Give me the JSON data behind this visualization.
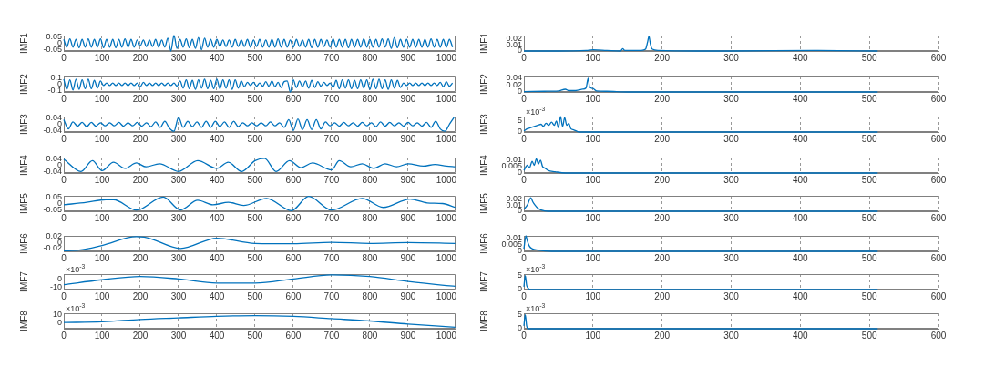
{
  "chart_data": [
    {
      "type": "line",
      "ylabel": "IMF1",
      "color": "#0072bd",
      "xlim": [
        0,
        1024
      ],
      "xticks": [
        0,
        100,
        200,
        300,
        400,
        500,
        600,
        700,
        800,
        900,
        1000
      ],
      "ylim": [
        -0.06,
        0.06
      ],
      "yticks": [
        -0.05,
        0,
        0.05
      ],
      "grid": "x",
      "x": [
        0,
        8,
        16,
        24,
        32,
        40,
        48,
        56,
        64,
        72,
        80,
        88,
        96,
        104,
        112,
        120,
        128,
        136,
        144,
        152,
        160,
        168,
        176,
        184,
        192,
        200,
        208,
        216,
        224,
        232,
        240,
        248,
        256,
        264,
        272,
        280,
        288,
        296,
        304,
        312,
        320,
        328,
        336,
        344,
        352,
        360,
        368,
        376,
        384,
        392,
        400,
        408,
        416,
        424,
        432,
        440,
        448,
        456,
        464,
        472,
        480,
        488,
        496,
        504,
        512,
        520,
        528,
        536,
        544,
        552,
        560,
        568,
        576,
        584,
        592,
        600,
        608,
        616,
        624,
        632,
        640,
        648,
        656,
        664,
        672,
        680,
        688,
        696,
        704,
        712,
        720,
        728,
        736,
        744,
        752,
        760,
        768,
        776,
        784,
        792,
        800,
        808,
        816,
        824,
        832,
        840,
        848,
        856,
        864,
        872,
        880,
        888,
        896,
        904,
        912,
        920,
        928,
        936,
        944,
        952,
        960,
        968,
        976,
        984,
        992,
        1000,
        1008,
        1016
      ],
      "values": [
        0.03,
        -0.03,
        0.035,
        -0.03,
        0.03,
        -0.035,
        0.03,
        -0.03,
        0.035,
        -0.03,
        0.03,
        -0.03,
        0.035,
        -0.035,
        0.03,
        -0.03,
        0.03,
        -0.035,
        0.03,
        -0.03,
        0.035,
        -0.03,
        0.03,
        -0.03,
        0.025,
        -0.02,
        0.025,
        -0.025,
        0.025,
        -0.025,
        0.03,
        -0.03,
        0.025,
        -0.03,
        0.04,
        -0.06,
        0.06,
        -0.04,
        0.03,
        -0.03,
        0.035,
        -0.035,
        0.03,
        -0.04,
        0.045,
        -0.05,
        0.04,
        -0.03,
        0.03,
        -0.03,
        0.03,
        -0.025,
        0.025,
        -0.025,
        0.025,
        -0.03,
        0.03,
        -0.025,
        0.025,
        -0.025,
        0.03,
        -0.03,
        0.025,
        -0.025,
        0.03,
        -0.03,
        0.025,
        -0.03,
        0.03,
        -0.03,
        0.035,
        -0.03,
        0.03,
        -0.03,
        0.025,
        -0.03,
        0.03,
        -0.025,
        0.025,
        -0.03,
        0.03,
        -0.035,
        0.03,
        -0.03,
        0.03,
        -0.025,
        0.025,
        -0.03,
        0.035,
        -0.03,
        0.03,
        -0.03,
        0.03,
        -0.035,
        0.03,
        -0.03,
        0.03,
        -0.03,
        0.035,
        -0.03,
        0.03,
        -0.03,
        0.03,
        -0.03,
        0.035,
        -0.03,
        0.035,
        -0.04,
        0.045,
        -0.035,
        0.03,
        -0.03,
        0.03,
        -0.03,
        0.03,
        -0.03,
        0.03,
        -0.03,
        0.03,
        -0.03,
        0.035,
        -0.03,
        0.03,
        -0.03,
        0.03,
        -0.03,
        0.03,
        -0.03
      ]
    },
    {
      "type": "line",
      "ylabel": "IMF1",
      "color": "#0072bd",
      "xlim": [
        0,
        600
      ],
      "xticks": [
        0,
        100,
        200,
        300,
        400,
        500,
        600
      ],
      "ylim": [
        0,
        0.026
      ],
      "yticks": [
        0,
        0.01,
        0.02
      ],
      "grid": "x",
      "x": [
        0,
        50,
        90,
        100,
        120,
        140,
        143,
        146,
        170,
        176,
        179,
        181,
        183,
        186,
        195,
        250,
        300,
        420,
        512
      ],
      "values": [
        0,
        0,
        0.001,
        0.002,
        0.001,
        0,
        0.004,
        0.001,
        0.001,
        0.003,
        0.015,
        0.025,
        0.012,
        0.003,
        0.001,
        0,
        0,
        0.001,
        0
      ]
    },
    {
      "type": "line",
      "ylabel": "IMF2",
      "color": "#0072bd",
      "xlim": [
        0,
        1024
      ],
      "xticks": [
        0,
        100,
        200,
        300,
        400,
        500,
        600,
        700,
        800,
        900,
        1000
      ],
      "ylim": [
        -0.12,
        0.12
      ],
      "yticks": [
        -0.1,
        0,
        0.1
      ],
      "grid": "x",
      "x": [
        0,
        8,
        16,
        24,
        32,
        40,
        48,
        56,
        64,
        72,
        80,
        88,
        96,
        104,
        112,
        120,
        128,
        136,
        144,
        152,
        160,
        168,
        176,
        184,
        192,
        200,
        208,
        216,
        224,
        232,
        240,
        248,
        256,
        264,
        272,
        280,
        288,
        296,
        304,
        312,
        320,
        328,
        336,
        344,
        352,
        360,
        368,
        376,
        384,
        392,
        400,
        408,
        416,
        424,
        432,
        440,
        448,
        456,
        464,
        472,
        480,
        488,
        496,
        504,
        512,
        520,
        528,
        536,
        544,
        552,
        560,
        568,
        576,
        584,
        592,
        600,
        608,
        616,
        624,
        632,
        640,
        648,
        656,
        664,
        672,
        680,
        688,
        696,
        704,
        712,
        720,
        728,
        736,
        744,
        752,
        760,
        768,
        776,
        784,
        792,
        800,
        808,
        816,
        824,
        832,
        840,
        848,
        856,
        864,
        872,
        880,
        888,
        896,
        904,
        912,
        920,
        928,
        936,
        944,
        952,
        960,
        968,
        976,
        984,
        992,
        1000,
        1008,
        1016
      ],
      "values": [
        0.08,
        -0.08,
        0.07,
        -0.09,
        0.08,
        -0.08,
        0.07,
        -0.07,
        0.08,
        -0.07,
        0.06,
        -0.06,
        0.05,
        -0.02,
        0.02,
        -0.02,
        0.02,
        -0.02,
        0.02,
        -0.02,
        0.02,
        -0.02,
        0.02,
        -0.02,
        0.02,
        -0.04,
        0.03,
        -0.02,
        0.02,
        -0.02,
        0.02,
        -0.02,
        0.02,
        -0.02,
        0.02,
        -0.02,
        0.02,
        -0.03,
        0.05,
        -0.06,
        0.07,
        -0.07,
        0.06,
        -0.08,
        0.07,
        -0.06,
        0.08,
        -0.07,
        0.06,
        -0.07,
        0.08,
        -0.07,
        0.07,
        -0.06,
        0.07,
        -0.08,
        0.07,
        -0.06,
        0.05,
        -0.04,
        0.03,
        -0.02,
        0.03,
        -0.03,
        0.02,
        -0.03,
        0.04,
        -0.03,
        0.05,
        -0.04,
        0.03,
        -0.05,
        0.04,
        0.05,
        -0.12,
        0.07,
        -0.05,
        0.05,
        -0.04,
        0.05,
        -0.06,
        0.06,
        -0.05,
        0.04,
        -0.03,
        0.03,
        -0.02,
        0.02,
        -0.05,
        0.06,
        -0.07,
        0.07,
        -0.06,
        0.07,
        -0.07,
        0.06,
        -0.07,
        0.07,
        -0.06,
        0.07,
        -0.08,
        0.08,
        -0.07,
        0.08,
        -0.07,
        0.07,
        -0.08,
        0.07,
        -0.06,
        0.06,
        -0.05,
        0.02,
        -0.02,
        0.02,
        -0.02,
        0.02,
        -0.02,
        0.02,
        -0.02,
        0.02,
        -0.02,
        0.02,
        -0.02,
        0.03,
        -0.04,
        0.04,
        -0.03,
        0.02
      ]
    },
    {
      "type": "line",
      "ylabel": "IMF2",
      "color": "#0072bd",
      "xlim": [
        0,
        600
      ],
      "xticks": [
        0,
        100,
        200,
        300,
        400,
        500,
        600
      ],
      "ylim": [
        0,
        0.045
      ],
      "yticks": [
        0,
        0.02,
        0.04
      ],
      "grid": "x",
      "x": [
        0,
        30,
        50,
        60,
        65,
        75,
        85,
        90,
        93,
        95,
        100,
        105,
        120,
        150,
        512
      ],
      "values": [
        0.001,
        0.002,
        0.003,
        0.008,
        0.004,
        0.004,
        0.008,
        0.012,
        0.04,
        0.015,
        0.01,
        0.003,
        0.002,
        0,
        0
      ]
    },
    {
      "type": "line",
      "ylabel": "IMF3",
      "color": "#0072bd",
      "xlim": [
        0,
        1024
      ],
      "xticks": [
        0,
        100,
        200,
        300,
        400,
        500,
        600,
        700,
        800,
        900,
        1000
      ],
      "ylim": [
        -0.05,
        0.05
      ],
      "yticks": [
        -0.04,
        0,
        0.04
      ],
      "grid": "x",
      "x": [
        0,
        12,
        24,
        36,
        48,
        60,
        72,
        84,
        96,
        108,
        120,
        132,
        144,
        156,
        168,
        180,
        192,
        204,
        216,
        228,
        240,
        252,
        264,
        276,
        288,
        300,
        312,
        324,
        336,
        348,
        360,
        372,
        384,
        396,
        408,
        420,
        432,
        444,
        456,
        468,
        480,
        492,
        504,
        516,
        528,
        540,
        552,
        564,
        576,
        588,
        600,
        612,
        624,
        636,
        648,
        660,
        672,
        684,
        696,
        708,
        720,
        732,
        744,
        756,
        768,
        780,
        792,
        804,
        816,
        828,
        840,
        852,
        864,
        876,
        888,
        900,
        912,
        924,
        936,
        948,
        960,
        972,
        984,
        996,
        1008,
        1020
      ],
      "values": [
        0.03,
        -0.03,
        0.015,
        -0.012,
        0.012,
        -0.015,
        0.012,
        -0.012,
        0.01,
        -0.01,
        0.01,
        -0.01,
        0.012,
        -0.012,
        0.01,
        -0.01,
        0.012,
        -0.012,
        0.01,
        -0.015,
        0.015,
        -0.02,
        0.02,
        -0.025,
        -0.045,
        0.045,
        -0.02,
        0.02,
        -0.015,
        0.015,
        -0.02,
        0.02,
        -0.02,
        0.02,
        -0.015,
        0.015,
        -0.02,
        0.02,
        -0.015,
        0.01,
        -0.01,
        0.01,
        -0.01,
        0.01,
        -0.01,
        0.015,
        -0.01,
        0.01,
        -0.02,
        0.03,
        -0.04,
        0.035,
        -0.035,
        0.03,
        -0.035,
        0.03,
        -0.03,
        0.015,
        -0.01,
        0.01,
        -0.012,
        0.012,
        -0.01,
        0.01,
        -0.012,
        0.012,
        -0.01,
        0.01,
        -0.015,
        0.015,
        -0.012,
        0.012,
        -0.01,
        0.01,
        -0.012,
        0.012,
        -0.01,
        0.01,
        -0.012,
        0.012,
        -0.02,
        0.02,
        -0.03,
        -0.045,
        0,
        0.045
      ]
    },
    {
      "type": "line",
      "ylabel": "IMF3",
      "color": "#0072bd",
      "xlim": [
        0,
        600
      ],
      "xticks": [
        0,
        100,
        200,
        300,
        400,
        500,
        600
      ],
      "ylim": [
        0,
        7
      ],
      "yticks": [
        0,
        5
      ],
      "grid": "x",
      "annotations": [
        "×10$^{-3}$"
      ],
      "x": [
        0,
        5,
        10,
        15,
        20,
        25,
        28,
        32,
        36,
        40,
        44,
        47,
        50,
        53,
        56,
        59,
        62,
        65,
        68,
        72,
        80,
        100,
        200,
        512
      ],
      "values": [
        0.5,
        1.5,
        2,
        2.5,
        3,
        3.5,
        2.5,
        4,
        3,
        4.5,
        3,
        5,
        2,
        7,
        2.5,
        6.5,
        3,
        4,
        1.5,
        1,
        0,
        0,
        0,
        0
      ]
    },
    {
      "type": "line",
      "ylabel": "IMF4",
      "color": "#0072bd",
      "xlim": [
        0,
        1024
      ],
      "xticks": [
        0,
        100,
        200,
        300,
        400,
        500,
        600,
        700,
        800,
        900,
        1000
      ],
      "ylim": [
        -0.05,
        0.05
      ],
      "yticks": [
        -0.04,
        0,
        0.04
      ],
      "grid": "x",
      "x": [
        0,
        45,
        75,
        100,
        130,
        160,
        190,
        215,
        250,
        300,
        350,
        400,
        430,
        465,
        500,
        525,
        555,
        590,
        620,
        650,
        700,
        720,
        750,
        780,
        810,
        840,
        870,
        900,
        940,
        970,
        1000,
        1023
      ],
      "values": [
        0.04,
        -0.04,
        0.03,
        -0.035,
        0.02,
        -0.02,
        0.015,
        -0.01,
        0.01,
        -0.04,
        0.03,
        -0.02,
        0.02,
        -0.04,
        0.03,
        0.045,
        -0.04,
        0.03,
        -0.015,
        0.015,
        -0.03,
        0.03,
        -0.01,
        0.01,
        -0.02,
        0.01,
        -0.01,
        0.01,
        -0.005,
        0.005,
        -0.005,
        -0.01
      ]
    },
    {
      "type": "line",
      "ylabel": "IMF4",
      "color": "#0072bd",
      "xlim": [
        0,
        600
      ],
      "xticks": [
        0,
        100,
        200,
        300,
        400,
        500,
        600
      ],
      "ylim": [
        0,
        0.012
      ],
      "yticks": [
        0,
        0.005,
        0.01
      ],
      "grid": "x",
      "x": [
        0,
        5,
        8,
        12,
        15,
        18,
        21,
        24,
        27,
        30,
        35,
        45,
        60,
        100,
        512
      ],
      "values": [
        0.002,
        0.006,
        0.004,
        0.009,
        0.006,
        0.011,
        0.007,
        0.01,
        0.005,
        0.004,
        0.002,
        0.001,
        0,
        0,
        0
      ]
    },
    {
      "type": "line",
      "ylabel": "IMF5",
      "color": "#0072bd",
      "xlim": [
        0,
        1024
      ],
      "xticks": [
        0,
        100,
        200,
        300,
        400,
        500,
        600,
        700,
        800,
        900,
        1000
      ],
      "ylim": [
        -0.06,
        0.06
      ],
      "yticks": [
        -0.05,
        0,
        0.05
      ],
      "grid": "x",
      "x": [
        0,
        60,
        110,
        130,
        190,
        200,
        260,
        305,
        350,
        390,
        430,
        470,
        530,
        595,
        640,
        700,
        780,
        835,
        905,
        950,
        990,
        1023
      ],
      "values": [
        -0.01,
        0.01,
        0.03,
        0.03,
        -0.05,
        -0.045,
        0.05,
        -0.05,
        0.025,
        -0.01,
        0.01,
        -0.015,
        0.04,
        -0.055,
        0.055,
        -0.05,
        0.04,
        -0.03,
        0.035,
        0.005,
        0,
        -0.03
      ]
    },
    {
      "type": "line",
      "ylabel": "IMF5",
      "color": "#0072bd",
      "xlim": [
        0,
        600
      ],
      "xticks": [
        0,
        100,
        200,
        300,
        400,
        500,
        600
      ],
      "ylim": [
        0,
        0.025
      ],
      "yticks": [
        0,
        0.01,
        0.02
      ],
      "grid": "x",
      "x": [
        0,
        5,
        10,
        13,
        16,
        20,
        25,
        35,
        100,
        512
      ],
      "values": [
        0.003,
        0.01,
        0.022,
        0.015,
        0.01,
        0.005,
        0.002,
        0,
        0,
        0
      ]
    },
    {
      "type": "line",
      "ylabel": "IMF6",
      "color": "#0072bd",
      "xlim": [
        0,
        1024
      ],
      "xticks": [
        0,
        100,
        200,
        300,
        400,
        500,
        600,
        700,
        800,
        900,
        1000
      ],
      "ylim": [
        -0.03,
        0.023
      ],
      "yticks": [
        -0.02,
        0,
        0.02
      ],
      "grid": "x",
      "x": [
        0,
        40,
        100,
        190,
        210,
        305,
        400,
        500,
        600,
        700,
        800,
        900,
        1023
      ],
      "values": [
        -0.028,
        -0.026,
        -0.01,
        0.02,
        0.019,
        -0.02,
        0.015,
        -0.003,
        -0.004,
        0.001,
        -0.003,
        0,
        -0.003
      ]
    },
    {
      "type": "line",
      "ylabel": "IMF6",
      "color": "#0072bd",
      "xlim": [
        0,
        600
      ],
      "xticks": [
        0,
        100,
        200,
        300,
        400,
        500,
        600
      ],
      "ylim": [
        0,
        0.012
      ],
      "yticks": [
        0,
        0.005,
        0.01
      ],
      "grid": "x",
      "x": [
        0,
        3,
        5,
        8,
        12,
        20,
        40,
        80,
        512
      ],
      "values": [
        0.002,
        0.012,
        0.008,
        0.004,
        0.002,
        0.001,
        0,
        0,
        0
      ]
    },
    {
      "type": "line",
      "ylabel": "IMF7",
      "color": "#0072bd",
      "xlim": [
        0,
        1024
      ],
      "xticks": [
        0,
        100,
        200,
        300,
        400,
        500,
        600,
        700,
        800,
        900,
        1000
      ],
      "ylim": [
        -13,
        6
      ],
      "yticks": [
        -10,
        0
      ],
      "grid": "x",
      "annotations": [
        "×10$^{-3}$"
      ],
      "x": [
        0,
        100,
        200,
        300,
        400,
        500,
        600,
        700,
        800,
        900,
        1000,
        1023
      ],
      "values": [
        -7,
        -1,
        3,
        0,
        -5,
        -5,
        0,
        5,
        3,
        -3,
        -8,
        -9
      ]
    },
    {
      "type": "line",
      "ylabel": "IMF7",
      "color": "#0072bd",
      "xlim": [
        0,
        600
      ],
      "xticks": [
        0,
        100,
        200,
        300,
        400,
        500,
        600
      ],
      "ylim": [
        0,
        5.5
      ],
      "yticks": [
        0,
        5
      ],
      "grid": "x",
      "annotations": [
        "×10$^{-3}$"
      ],
      "x": [
        0,
        2,
        4,
        6,
        10,
        30,
        512
      ],
      "values": [
        1,
        5,
        1.5,
        0.5,
        0,
        0,
        0
      ]
    },
    {
      "type": "line",
      "ylabel": "IMF8",
      "color": "#0072bd",
      "xlim": [
        0,
        1024
      ],
      "xticks": [
        0,
        100,
        200,
        300,
        400,
        500,
        600,
        700,
        800,
        900,
        1000
      ],
      "ylim": [
        -8,
        12
      ],
      "yticks": [
        0,
        10
      ],
      "grid": "x",
      "annotations": [
        "×10$^{-3}$"
      ],
      "x": [
        0,
        100,
        200,
        300,
        400,
        500,
        600,
        700,
        800,
        900,
        1023
      ],
      "values": [
        0,
        1,
        4,
        6,
        8,
        9,
        8,
        5,
        2,
        -2,
        -6
      ]
    },
    {
      "type": "line",
      "ylabel": "IMF8",
      "color": "#0072bd",
      "xlim": [
        0,
        600
      ],
      "xticks": [
        0,
        100,
        200,
        300,
        400,
        500,
        600
      ],
      "ylim": [
        0,
        5.5
      ],
      "yticks": [
        0,
        5
      ],
      "grid": "x",
      "annotations": [
        "×10$^{-3}$"
      ],
      "x": [
        0,
        2,
        4,
        6,
        10,
        30,
        512
      ],
      "values": [
        1,
        5,
        1,
        0,
        0,
        0,
        0
      ]
    }
  ]
}
